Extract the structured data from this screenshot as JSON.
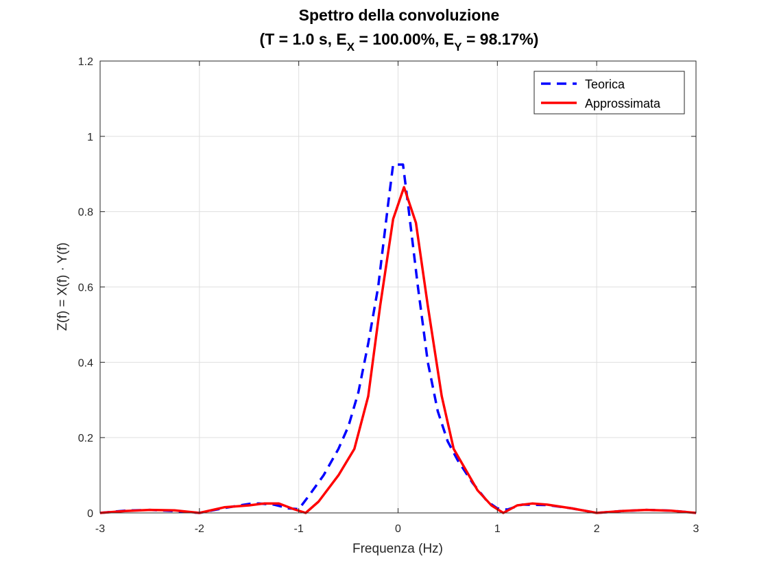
{
  "chart_data": {
    "type": "line",
    "title_line1": "Spettro della convoluzione",
    "title_line2": {
      "p1": "(T = 1.0 s, E",
      "sub1": "X",
      "p2": " = 100.00%, E",
      "sub2": "Y",
      "p3": " = 98.17%)"
    },
    "xlabel": "Frequenza (Hz)",
    "ylabel": "Z(f) = X(f) · Y(f)",
    "xlim": [
      -3,
      3
    ],
    "ylim": [
      0,
      1.2
    ],
    "xticks": [
      -3,
      -2,
      -1,
      0,
      1,
      2,
      3
    ],
    "xtick_labels": [
      "-3",
      "-2",
      "-1",
      "0",
      "1",
      "2",
      "3"
    ],
    "yticks": [
      0,
      0.2,
      0.4,
      0.6,
      0.8,
      1,
      1.2
    ],
    "ytick_labels": [
      "0",
      "0.2",
      "0.4",
      "0.6",
      "0.8",
      "1",
      "1.2"
    ],
    "grid": true,
    "legend_position": "top-right",
    "series": [
      {
        "name": "Teorica",
        "color": "#0000ff",
        "style": "dashed",
        "x": [
          -3,
          -2.75,
          -2.5,
          -2.25,
          -2,
          -1.75,
          -1.5,
          -1.4,
          -1.25,
          -1.1,
          -1.0,
          -0.9,
          -0.75,
          -0.6,
          -0.5,
          -0.4,
          -0.3,
          -0.2,
          -0.1,
          -0.05,
          0.0,
          0.05,
          0.1,
          0.2,
          0.3,
          0.4,
          0.5,
          0.6,
          0.75,
          0.9,
          1.0,
          1.1,
          1.25,
          1.5,
          1.75,
          2,
          2.25,
          2.5,
          2.75,
          3
        ],
        "y": [
          0.0,
          0.006,
          0.008,
          0.005,
          0.0,
          0.013,
          0.024,
          0.025,
          0.022,
          0.012,
          0.01,
          0.045,
          0.1,
          0.17,
          0.23,
          0.32,
          0.45,
          0.6,
          0.82,
          0.925,
          0.925,
          0.925,
          0.82,
          0.6,
          0.4,
          0.27,
          0.19,
          0.14,
          0.08,
          0.03,
          0.012,
          0.009,
          0.022,
          0.021,
          0.012,
          0.0,
          0.005,
          0.008,
          0.006,
          0.0
        ]
      },
      {
        "name": "Approssimata",
        "color": "#ff0000",
        "style": "solid",
        "x": [
          -3,
          -2.75,
          -2.5,
          -2.25,
          -2,
          -1.75,
          -1.5,
          -1.35,
          -1.2,
          -1.05,
          -0.93,
          -0.8,
          -0.6,
          -0.44,
          -0.3,
          -0.18,
          -0.05,
          0.06,
          0.18,
          0.3,
          0.44,
          0.56,
          0.8,
          0.94,
          1.06,
          1.2,
          1.35,
          1.5,
          1.75,
          2,
          2.25,
          2.5,
          2.75,
          3
        ],
        "y": [
          0.0,
          0.005,
          0.008,
          0.007,
          0.0,
          0.015,
          0.02,
          0.025,
          0.025,
          0.01,
          0.0,
          0.03,
          0.1,
          0.17,
          0.31,
          0.55,
          0.78,
          0.865,
          0.77,
          0.55,
          0.31,
          0.17,
          0.06,
          0.02,
          0.0,
          0.02,
          0.025,
          0.022,
          0.012,
          0.0,
          0.005,
          0.008,
          0.006,
          0.0
        ]
      }
    ]
  }
}
